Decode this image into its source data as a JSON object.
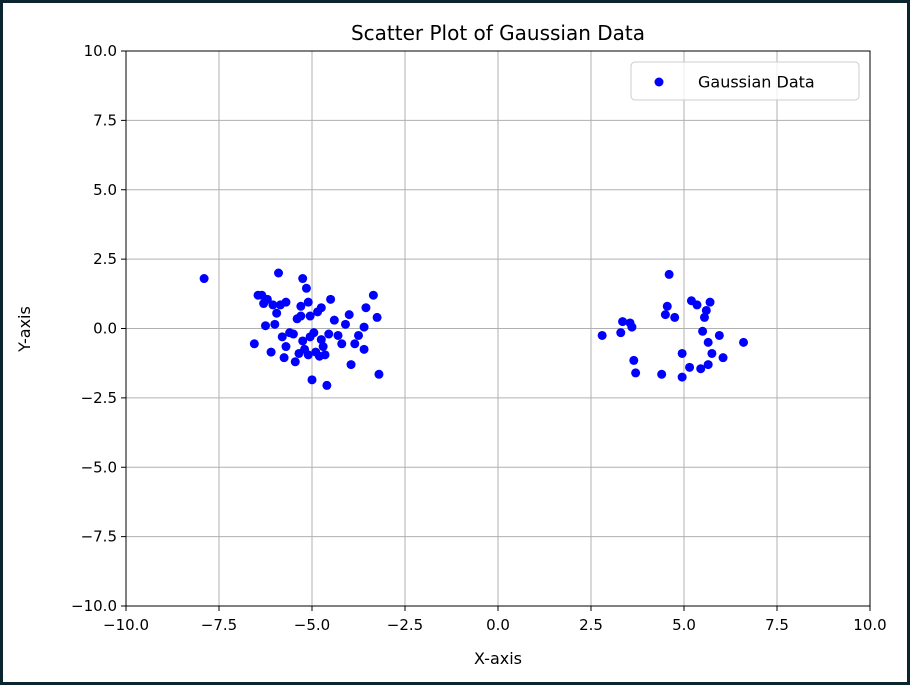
{
  "chart_data": {
    "type": "scatter",
    "title": "Scatter Plot of Gaussian Data",
    "xlabel": "X-axis",
    "ylabel": "Y-axis",
    "xlim": [
      -10,
      10
    ],
    "ylim": [
      -10,
      10
    ],
    "grid": true,
    "legend_position": "top-right",
    "xticks": [
      "−10.0",
      "−7.5",
      "−5.0",
      "−2.5",
      "0.0",
      "2.5",
      "5.0",
      "7.5",
      "10.0"
    ],
    "yticks": [
      "−10.0",
      "−7.5",
      "−5.0",
      "−2.5",
      "0.0",
      "2.5",
      "5.0",
      "7.5",
      "10.0"
    ],
    "series": [
      {
        "name": "Gaussian Data",
        "color": "#0000ff",
        "points": [
          [
            -7.9,
            1.8
          ],
          [
            -6.55,
            -0.55
          ],
          [
            -6.45,
            1.2
          ],
          [
            -6.35,
            1.2
          ],
          [
            -6.3,
            0.9
          ],
          [
            -6.25,
            0.1
          ],
          [
            -6.2,
            1.05
          ],
          [
            -6.1,
            -0.85
          ],
          [
            -6.05,
            0.85
          ],
          [
            -6.0,
            0.15
          ],
          [
            -5.95,
            0.55
          ],
          [
            -5.9,
            2.0
          ],
          [
            -5.85,
            0.85
          ],
          [
            -5.8,
            -0.3
          ],
          [
            -5.75,
            -1.05
          ],
          [
            -5.7,
            0.95
          ],
          [
            -5.7,
            -0.65
          ],
          [
            -5.6,
            -0.15
          ],
          [
            -5.5,
            -0.2
          ],
          [
            -5.45,
            -1.2
          ],
          [
            -5.4,
            0.35
          ],
          [
            -5.35,
            -0.9
          ],
          [
            -5.3,
            0.8
          ],
          [
            -5.3,
            0.45
          ],
          [
            -5.25,
            -0.45
          ],
          [
            -5.25,
            1.8
          ],
          [
            -5.2,
            -0.75
          ],
          [
            -5.15,
            1.45
          ],
          [
            -5.1,
            -0.95
          ],
          [
            -5.1,
            0.95
          ],
          [
            -5.05,
            0.45
          ],
          [
            -5.05,
            -0.3
          ],
          [
            -5.0,
            -1.85
          ],
          [
            -4.95,
            -0.15
          ],
          [
            -4.9,
            -0.85
          ],
          [
            -4.85,
            0.6
          ],
          [
            -4.8,
            -1.0
          ],
          [
            -4.75,
            -0.4
          ],
          [
            -4.75,
            0.75
          ],
          [
            -4.7,
            -0.65
          ],
          [
            -4.65,
            -0.95
          ],
          [
            -4.6,
            -2.05
          ],
          [
            -4.55,
            -0.2
          ],
          [
            -4.5,
            1.05
          ],
          [
            -4.4,
            0.3
          ],
          [
            -4.3,
            -0.25
          ],
          [
            -4.2,
            -0.55
          ],
          [
            -4.1,
            0.15
          ],
          [
            -4.0,
            0.5
          ],
          [
            -3.95,
            -1.3
          ],
          [
            -3.85,
            -0.55
          ],
          [
            -3.75,
            -0.25
          ],
          [
            -3.6,
            0.05
          ],
          [
            -3.6,
            -0.75
          ],
          [
            -3.55,
            0.75
          ],
          [
            -3.35,
            1.2
          ],
          [
            -3.25,
            0.4
          ],
          [
            -3.2,
            -1.65
          ],
          [
            2.8,
            -0.25
          ],
          [
            3.3,
            -0.15
          ],
          [
            3.35,
            0.25
          ],
          [
            3.55,
            0.2
          ],
          [
            3.6,
            0.05
          ],
          [
            3.65,
            -1.15
          ],
          [
            3.7,
            -1.6
          ],
          [
            4.4,
            -1.65
          ],
          [
            4.5,
            0.5
          ],
          [
            4.55,
            0.8
          ],
          [
            4.6,
            1.95
          ],
          [
            4.75,
            0.4
          ],
          [
            4.95,
            -0.9
          ],
          [
            4.95,
            -1.75
          ],
          [
            5.15,
            -1.4
          ],
          [
            5.2,
            1.0
          ],
          [
            5.35,
            0.85
          ],
          [
            5.45,
            -1.45
          ],
          [
            5.5,
            -0.1
          ],
          [
            5.55,
            0.4
          ],
          [
            5.6,
            0.65
          ],
          [
            5.65,
            -1.3
          ],
          [
            5.65,
            -0.5
          ],
          [
            5.7,
            0.95
          ],
          [
            5.75,
            -0.9
          ],
          [
            5.95,
            -0.25
          ],
          [
            6.05,
            -1.05
          ],
          [
            6.6,
            -0.5
          ]
        ]
      }
    ]
  }
}
